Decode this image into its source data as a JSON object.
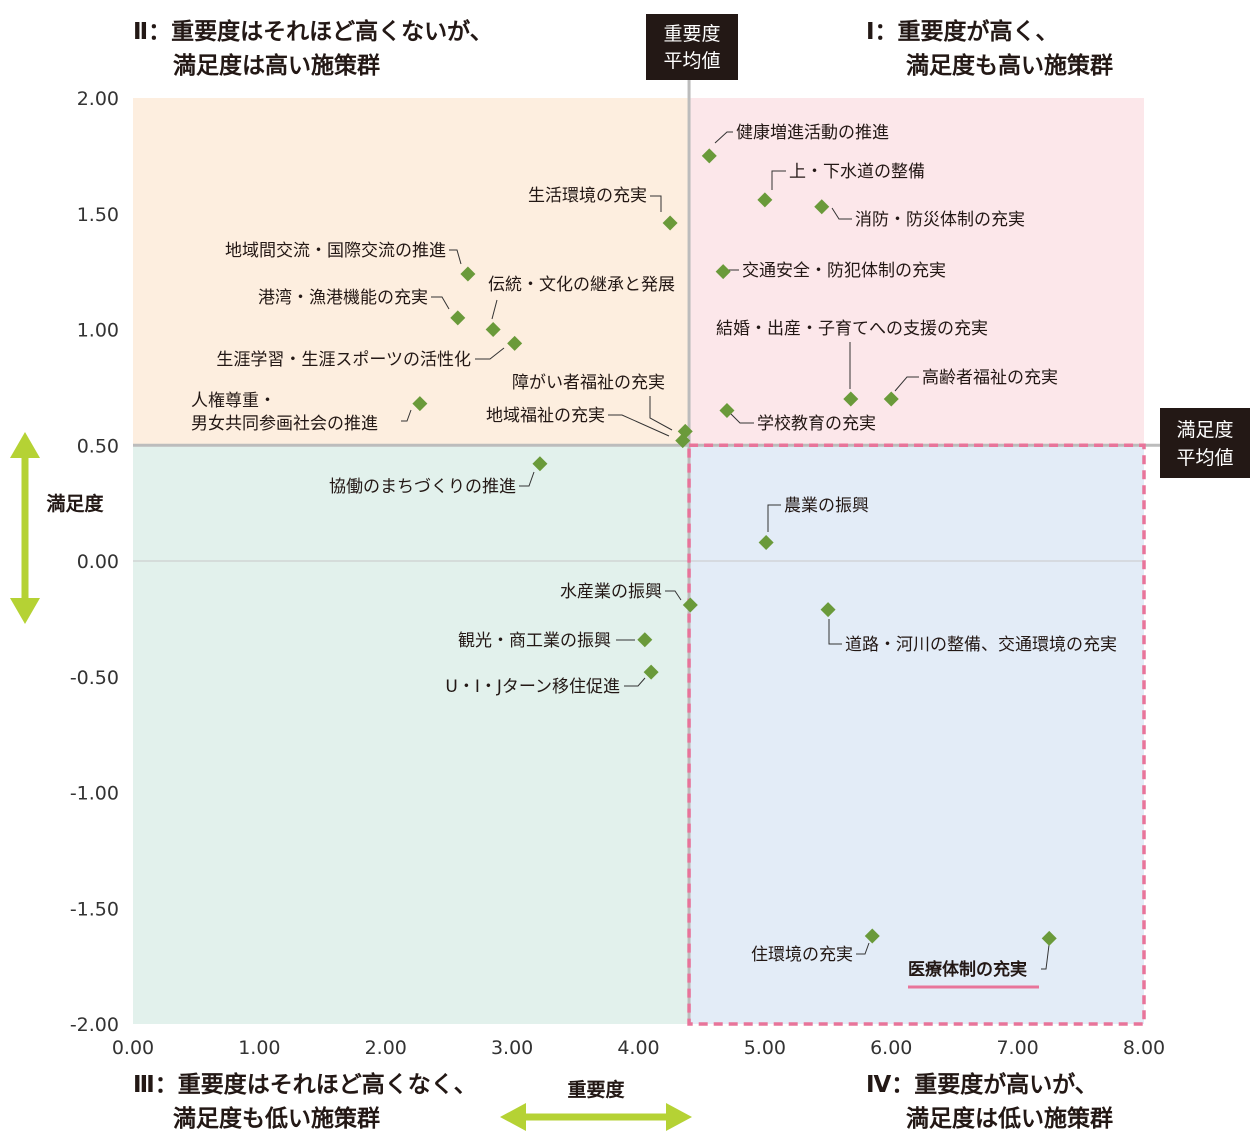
{
  "chart_data": {
    "type": "scatter",
    "xlabel": "重要度",
    "ylabel": "満足度",
    "xlim": [
      0,
      8
    ],
    "ylim": [
      -2,
      2
    ],
    "x_ticks": [
      "0.00",
      "1.00",
      "2.00",
      "3.00",
      "4.00",
      "5.00",
      "6.00",
      "7.00",
      "8.00"
    ],
    "y_ticks": [
      "2.00",
      "1.50",
      "1.00",
      "0.50",
      "0.00",
      "-0.50",
      "-1.00",
      "-1.50",
      "-2.00"
    ],
    "importance_average": {
      "label_lines": [
        "重要度",
        "平均値"
      ],
      "value": 4.4
    },
    "satisfaction_average": {
      "label_lines": [
        "満足度",
        "平均値"
      ],
      "value": 0.5
    },
    "quadrants": {
      "q1": {
        "lines": [
          "Ⅰ：重要度が高く、",
          "満足度も高い施策群"
        ],
        "color": "#fce7ea"
      },
      "q2": {
        "lines": [
          "Ⅱ：重要度はそれほど高くないが、",
          "満足度は高い施策群"
        ],
        "color": "#fdeedf"
      },
      "q3": {
        "lines": [
          "Ⅲ：重要度はそれほど高くなく、",
          "満足度も低い施策群"
        ],
        "color": "#e2f1ec"
      },
      "q4": {
        "lines": [
          "Ⅳ：重要度が高いが、",
          "満足度は低い施策群"
        ],
        "color": "#e3ecf7"
      }
    },
    "colors": {
      "marker": "#6a9a3a",
      "arrow": "#b5d234",
      "highlight": "#e8749a",
      "avg_label_bg": "#231815",
      "grid": "#bcbcbc"
    },
    "points": [
      {
        "name": "健康増進活動の推進",
        "x": 4.56,
        "y": 1.75
      },
      {
        "name": "上・下水道の整備",
        "x": 5.0,
        "y": 1.56
      },
      {
        "name": "消防・防災体制の充実",
        "x": 5.45,
        "y": 1.53
      },
      {
        "name": "交通安全・防犯体制の充実",
        "x": 4.67,
        "y": 1.25
      },
      {
        "name": "結婚・出産・子育てへの支援の充実",
        "x": 5.68,
        "y": 0.7
      },
      {
        "name": "高齢者福祉の充実",
        "x": 6.0,
        "y": 0.7
      },
      {
        "name": "学校教育の充実",
        "x": 4.7,
        "y": 0.65
      },
      {
        "name": "生活環境の充実",
        "x": 4.25,
        "y": 1.46
      },
      {
        "name": "地域間交流・国際交流の推進",
        "x": 2.65,
        "y": 1.24
      },
      {
        "name": "港湾・漁港機能の充実",
        "x": 2.57,
        "y": 1.05
      },
      {
        "name": "伝統・文化の継承と発展",
        "x": 2.85,
        "y": 1.0
      },
      {
        "name": "生涯学習・生涯スポーツの活性化",
        "x": 3.02,
        "y": 0.94
      },
      {
        "name": "人権尊重・男女共同参画社会の推進",
        "x": 2.27,
        "y": 0.68
      },
      {
        "name": "障がい者福祉の充実",
        "x": 4.37,
        "y": 0.56
      },
      {
        "name": "地域福祉の充実",
        "x": 4.35,
        "y": 0.52
      },
      {
        "name": "協働のまちづくりの推進",
        "x": 3.22,
        "y": 0.42
      },
      {
        "name": "農業の振興",
        "x": 5.01,
        "y": 0.08
      },
      {
        "name": "水産業の振興",
        "x": 4.41,
        "y": -0.19
      },
      {
        "name": "道路・河川の整備、交通環境の充実",
        "x": 5.5,
        "y": -0.21
      },
      {
        "name": "観光・商工業の振興",
        "x": 4.05,
        "y": -0.34
      },
      {
        "name": "U・I・Jターン移住促進",
        "x": 4.1,
        "y": -0.48
      },
      {
        "name": "住環境の充実",
        "x": 5.85,
        "y": -1.62
      },
      {
        "name": "医療体制の充実",
        "x": 7.25,
        "y": -1.63,
        "highlight": true
      }
    ]
  }
}
